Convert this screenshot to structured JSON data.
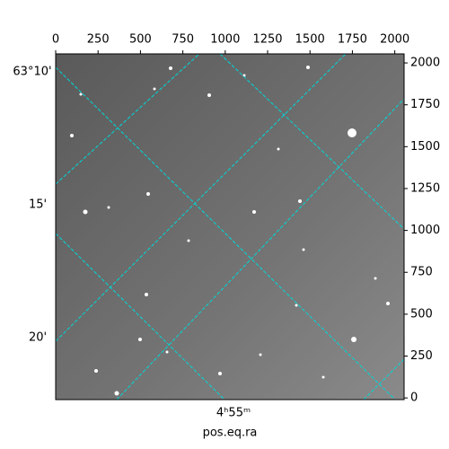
{
  "chart_data": {
    "type": "image",
    "xlabel": "pos.eq.ra",
    "xlim": [
      0,
      2055
    ],
    "xticks": [
      0,
      250,
      500,
      750,
      1000,
      1250,
      1500,
      1750,
      2000
    ],
    "ylim": [
      -10,
      2054
    ],
    "yticks": [
      0,
      250,
      500,
      750,
      1000,
      1250,
      1500,
      1750,
      2000
    ],
    "dec_ticks": [
      "63°10'",
      "15'",
      "20'"
    ],
    "ra_ticks": [
      "4ʰ55ᵐ"
    ]
  }
}
